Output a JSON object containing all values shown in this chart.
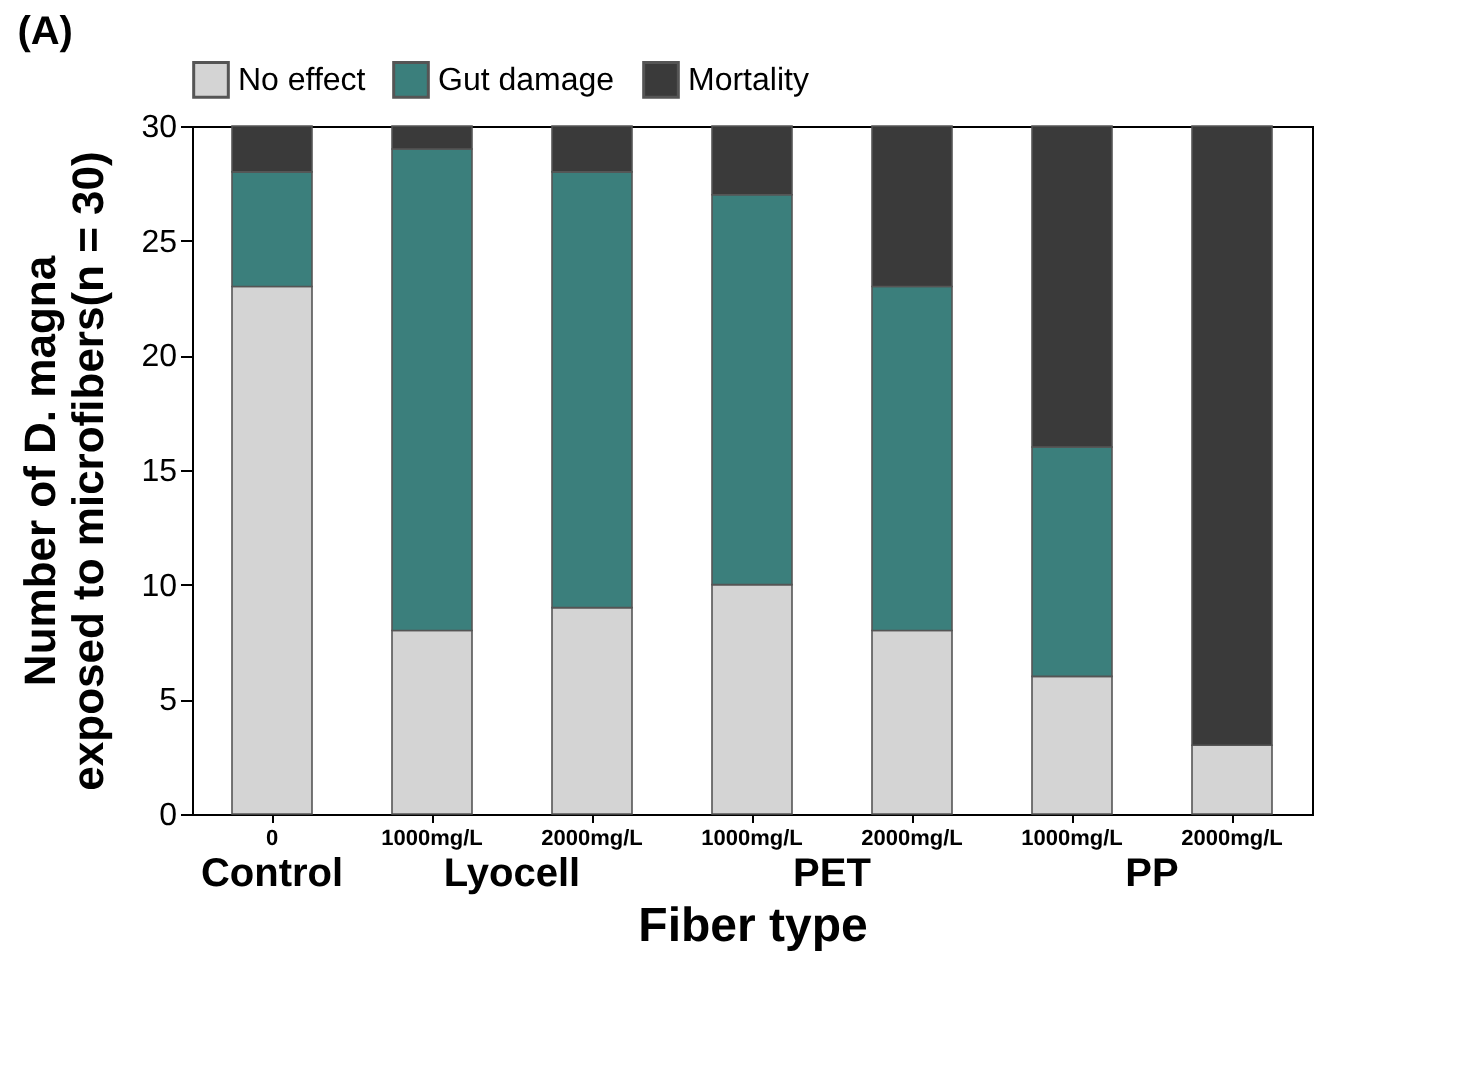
{
  "chart_data": {
    "type": "bar",
    "title": "(A)",
    "xlabel": "Fiber type",
    "ylabel": [
      "Number of  D. magna",
      "exposed to microfibers(n = 30)"
    ],
    "categories": [
      "0",
      "1000mg/L",
      "2000mg/L",
      "1000mg/L",
      "2000mg/L",
      "1000mg/L",
      "2000mg/L"
    ],
    "series": [
      {
        "name": "No effect",
        "color": "#d4d4d4",
        "values": [
          23,
          8,
          9,
          10,
          8,
          6,
          3
        ]
      },
      {
        "name": "Gut damage",
        "color": "#3b7f7c",
        "values": [
          5,
          21,
          19,
          17,
          15,
          10,
          0
        ]
      },
      {
        "name": "Mortality",
        "color": "#3a3a3a",
        "values": [
          2,
          1,
          2,
          3,
          7,
          14,
          27
        ]
      }
    ],
    "stacked": true,
    "ylim": [
      0,
      30
    ],
    "yticks": [
      0,
      5,
      10,
      15,
      20,
      25,
      30
    ],
    "grid": false,
    "legend": "top",
    "annotations": [
      "Control",
      "Lyocell",
      "PET",
      "PP"
    ]
  }
}
